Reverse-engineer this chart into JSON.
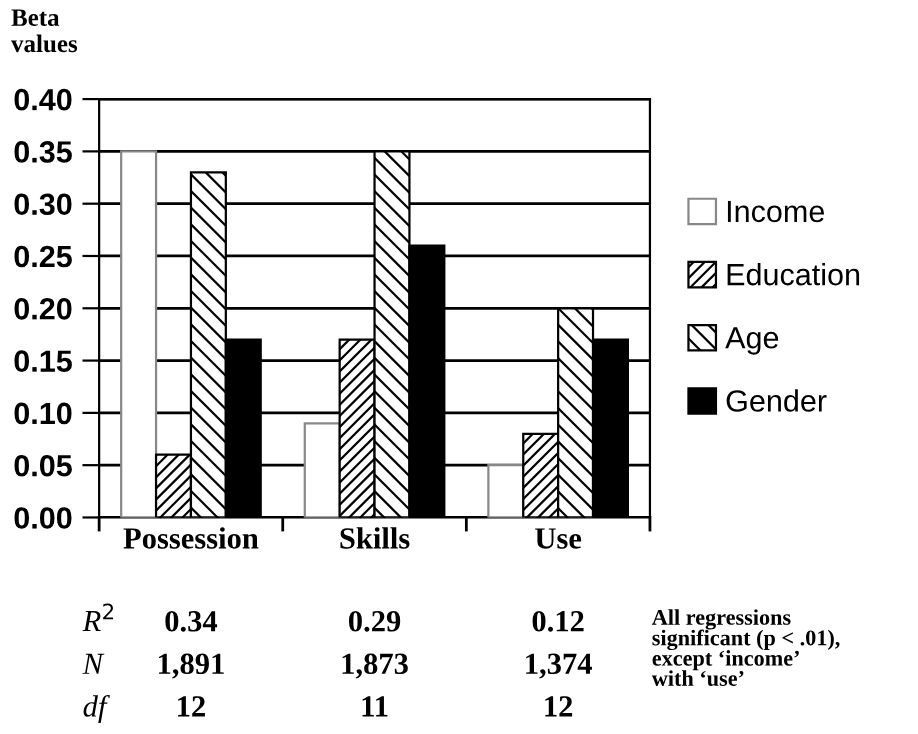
{
  "chart_data": {
    "type": "bar",
    "ylabel": "Beta\nvalues",
    "categories": [
      "Possession",
      "Skills",
      "Use"
    ],
    "series": [
      {
        "name": "Income",
        "color": "#ffffff",
        "values": [
          0.35,
          0.09,
          0.05
        ]
      },
      {
        "name": "Education",
        "color": "#000000",
        "values": [
          0.06,
          0.17,
          0.08
        ]
      },
      {
        "name": "Age",
        "color": "#000000",
        "values": [
          0.33,
          0.35,
          0.2
        ]
      },
      {
        "name": "Gender",
        "color": "#000000",
        "values": [
          0.17,
          0.26,
          0.17
        ]
      }
    ],
    "ylim": [
      0,
      0.4
    ],
    "yticks": [
      {
        "value": 0,
        "label": "0.00"
      },
      {
        "value": 0.05,
        "label": "0.05"
      },
      {
        "value": 0.1,
        "label": "0.10"
      },
      {
        "value": 0.15,
        "label": "0.15"
      },
      {
        "value": 0.2,
        "label": "0.20"
      },
      {
        "value": 0.25,
        "label": "0.25"
      },
      {
        "value": 0.3,
        "label": "0.30"
      },
      {
        "value": 0.35,
        "label": "0.35"
      },
      {
        "value": 0.4,
        "label": "0.40"
      }
    ],
    "grid": "y",
    "legend": "right",
    "annotations": [
      "R$^{2}$",
      "0.34",
      "0.29",
      "0.12",
      "N",
      "1,891",
      "1,873",
      "1,374",
      "df",
      "12",
      "11",
      "12",
      "All regressions\nsignificant (p < .01),\nexcept ‘income’\nwith ‘use’"
    ]
  }
}
